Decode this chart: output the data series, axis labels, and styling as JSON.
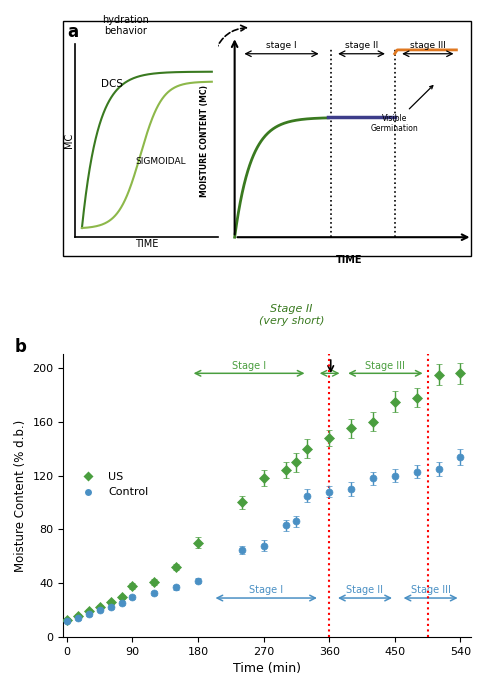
{
  "panel_a_label": "a",
  "panel_b_label": "b",
  "inset_title": "hydration\nbehavior",
  "inset_xlabel": "TIME",
  "inset_ylabel": "MC",
  "stage2_label_top": "Stage II\n(very short)",
  "us_label": "US",
  "control_label": "Control",
  "xlabel_b": "Time (min)",
  "ylabel_b": "Moisture Content (% d.b.)",
  "us_color": "#4a9e3f",
  "control_color": "#4a90c4",
  "us_x": [
    0,
    15,
    30,
    45,
    60,
    75,
    90,
    120,
    150,
    180,
    240,
    270,
    300,
    315,
    330,
    360,
    390,
    420,
    450,
    480,
    510,
    540
  ],
  "us_y": [
    13,
    16,
    19,
    22,
    26,
    30,
    38,
    41,
    52,
    70,
    100,
    118,
    124,
    130,
    140,
    148,
    155,
    160,
    175,
    178,
    195,
    196
  ],
  "us_err": [
    1.5,
    1.5,
    1.5,
    1.5,
    1.5,
    1.5,
    2,
    2,
    2.5,
    4,
    5,
    6,
    6,
    7,
    7,
    6,
    7,
    7,
    8,
    7,
    8,
    8
  ],
  "ctrl_x": [
    0,
    15,
    30,
    45,
    60,
    75,
    90,
    120,
    150,
    180,
    240,
    270,
    300,
    315,
    330,
    360,
    390,
    420,
    450,
    480,
    510,
    540
  ],
  "ctrl_y": [
    12,
    14,
    17,
    20,
    22,
    25,
    30,
    33,
    37,
    42,
    65,
    68,
    83,
    86,
    105,
    108,
    110,
    118,
    120,
    123,
    125,
    134
  ],
  "ctrl_err": [
    1,
    1,
    1,
    1,
    1,
    1.5,
    1.5,
    1.5,
    2,
    2,
    3,
    4,
    4,
    4,
    5,
    4,
    5,
    5,
    5,
    5,
    5,
    6
  ],
  "ylim_b": [
    0,
    210
  ],
  "xlim_b": [
    -5,
    555
  ],
  "yticks_b": [
    0,
    40,
    80,
    120,
    160,
    200
  ],
  "xticks_b": [
    0,
    90,
    180,
    270,
    360,
    450,
    540
  ],
  "red_vline1": 360,
  "red_vline2": 495,
  "background_color": "#ffffff",
  "schematic_green_color": "#3a7a20",
  "schematic_green2_color": "#8db84a",
  "schematic_blue_color": "#3d3d8a",
  "schematic_orange_color": "#e07820"
}
